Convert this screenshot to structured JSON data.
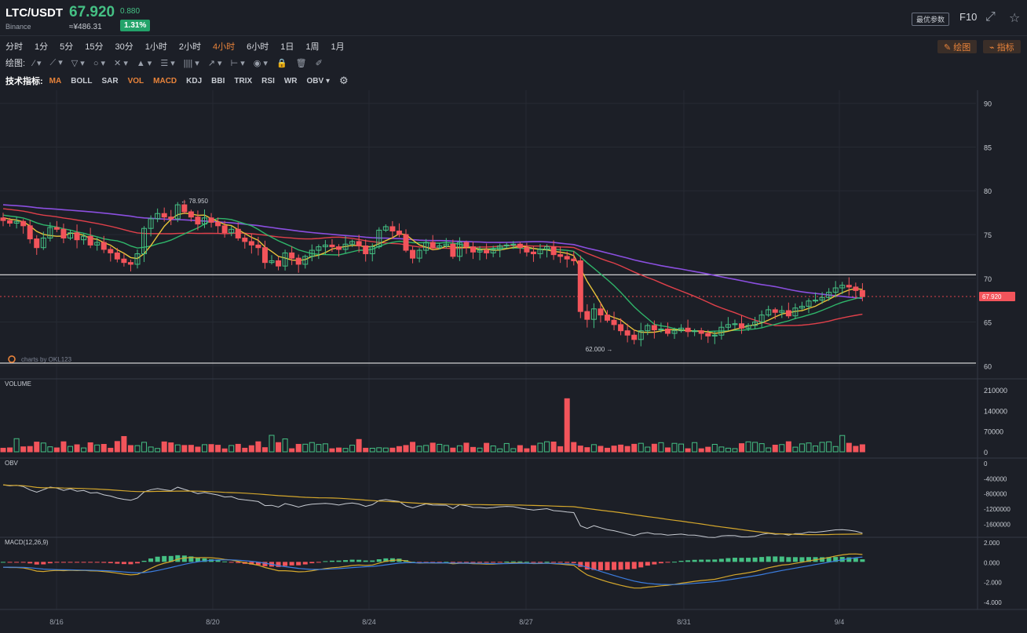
{
  "header": {
    "symbol": "LTC/USDT",
    "exchange": "Binance",
    "price": "67.920",
    "cny_price": "≈¥486.31",
    "change": "0.880",
    "change_pct": "1.31%",
    "opt_button": "最优参数",
    "f10": "F10"
  },
  "timeframes": [
    "分时",
    "1分",
    "5分",
    "15分",
    "30分",
    "1小时",
    "2小时",
    "4小时",
    "6小时",
    "1日",
    "1周",
    "1月"
  ],
  "active_timeframe": "4小时",
  "draw_toolbar": {
    "label": "绘图:"
  },
  "indicator_bar": {
    "label": "技术指标:",
    "items": [
      "MA",
      "BOLL",
      "SAR",
      "VOL",
      "MACD",
      "KDJ",
      "BBI",
      "TRIX",
      "RSI",
      "WR",
      "OBV ▾"
    ],
    "active": [
      "MA",
      "VOL",
      "MACD"
    ]
  },
  "right_buttons": {
    "draw": "绘图",
    "indicator": "指标"
  },
  "icons": [
    "settings-icon",
    "fullscreen-icon",
    "star-icon",
    "pencil-icon",
    "indicator-icon"
  ],
  "colors": {
    "up": "#45c084",
    "down": "#f2545b",
    "ma_yellow": "#e8c33a",
    "ma_green": "#2fb56a",
    "ma_red": "#e0404a",
    "ma_purple": "#8b4fe0",
    "obv_white": "#c8ccd3",
    "obv_gold": "#d4a72c",
    "macd_blue": "#3b7de0",
    "macd_gold": "#d4a72c"
  },
  "main_chart": {
    "watermark": "charts by OKL123",
    "y_ticks": [
      "90",
      "85",
      "80",
      "75",
      "70",
      "65",
      "60"
    ],
    "ylim": [
      58.5,
      91.5
    ],
    "price_label": "67.920",
    "high_label": "← 78.950",
    "low_label": "62.000 →",
    "x_labels": [
      "8/16",
      "8/20",
      "8/24",
      "8/27",
      "8/31",
      "9/4"
    ]
  },
  "volume_panel": {
    "label": "VOLUME",
    "y_ticks": [
      "210000",
      "140000",
      "70000",
      "0"
    ]
  },
  "obv_panel": {
    "label": "OBV",
    "y_ticks": [
      "0",
      "-400000",
      "-800000",
      "-1200000",
      "-1600000"
    ]
  },
  "macd_panel": {
    "label": "MACD(12,26,9)",
    "y_ticks": [
      "2.000",
      "0.000",
      "-2.000",
      "-4.000"
    ]
  },
  "chart_data": {
    "type": "candlestick",
    "x_labels": [
      "8/16",
      "8/20",
      "8/24",
      "8/27",
      "8/31",
      "9/4"
    ],
    "levels": {
      "high": 70.4,
      "low": 60.3,
      "current": 67.92,
      "max": 78.95,
      "min": 62.0
    },
    "closes": [
      76.6,
      76.3,
      76.5,
      76.0,
      74.5,
      73.5,
      74.6,
      75.8,
      75.6,
      74.6,
      75.2,
      74.4,
      74.8,
      73.8,
      74.1,
      73.3,
      72.9,
      72.2,
      71.8,
      71.6,
      72.8,
      75.7,
      76.8,
      77.4,
      77.0,
      76.8,
      78.4,
      77.6,
      77.0,
      76.2,
      76.9,
      76.4,
      76.0,
      75.2,
      75.6,
      74.6,
      74.2,
      73.8,
      73.5,
      71.8,
      72.0,
      71.4,
      72.9,
      72.3,
      71.6,
      72.5,
      73.2,
      73.6,
      73.8,
      73.6,
      73.3,
      73.9,
      74.2,
      73.7,
      72.8,
      73.6,
      75.5,
      75.9,
      75.4,
      75.0,
      73.2,
      72.3,
      73.2,
      74.1,
      73.5,
      73.7,
      73.9,
      72.5,
      74.1,
      73.6,
      73.0,
      73.2,
      72.9,
      73.3,
      73.7,
      73.8,
      73.9,
      73.5,
      73.0,
      72.8,
      73.3,
      73.6,
      72.7,
      72.5,
      72.2,
      72.0,
      66.2,
      65.3,
      66.5,
      65.8,
      65.2,
      64.7,
      64.0,
      63.5,
      63.0,
      64.0,
      64.6,
      64.1,
      64.2,
      63.7,
      64.0,
      64.3,
      63.9,
      64.0,
      63.7,
      63.4,
      63.5,
      64.4,
      64.7,
      64.8,
      64.3,
      64.6,
      65.0,
      65.8,
      66.4,
      66.1,
      66.3,
      65.7,
      66.6,
      66.8,
      67.4,
      67.5,
      67.8,
      68.4,
      68.9,
      69.2,
      69.0,
      68.6,
      67.9
    ],
    "volume": {
      "peak": 180000,
      "typical": 25000
    },
    "series": [
      {
        "name": "VOLUME"
      },
      {
        "name": "OBV"
      },
      {
        "name": "MACD(12,26,9)"
      }
    ]
  }
}
